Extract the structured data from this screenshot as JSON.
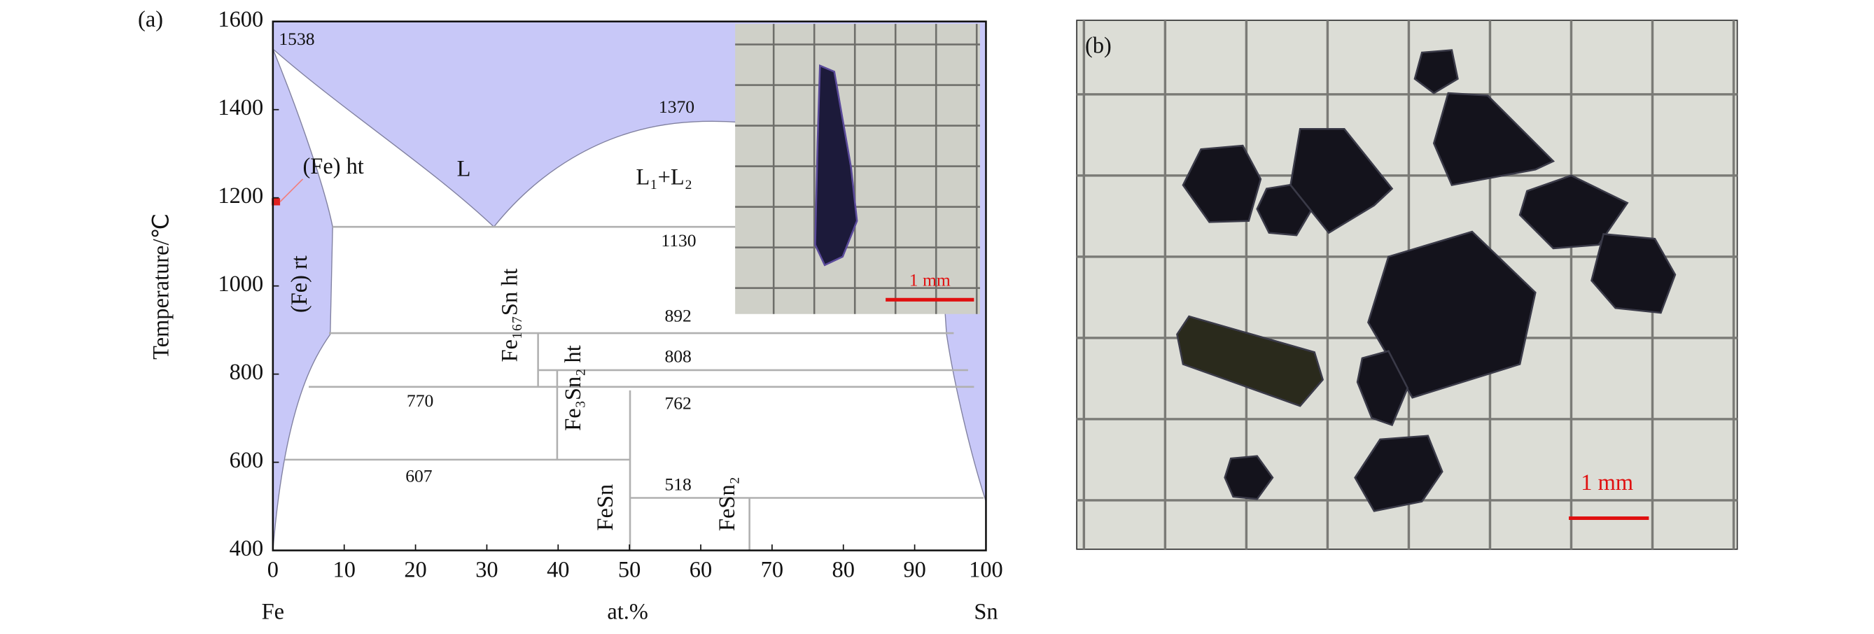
{
  "panel_a": {
    "label": "(a)",
    "y_axis_title": "Temperature/℃",
    "x_axis_title": "at.%",
    "x_left": "Fe",
    "x_right": "Sn",
    "xticks": [
      0,
      10,
      20,
      30,
      40,
      50,
      60,
      70,
      80,
      90,
      100
    ],
    "yticks": [
      400,
      600,
      800,
      1000,
      1200,
      1400,
      1600
    ],
    "temperatures": [
      1538,
      1370,
      1130,
      892,
      808,
      770,
      762,
      607,
      518
    ],
    "phases": [
      "(Fe) ht",
      "L",
      "L₁+L₂",
      "(Fe) rt",
      "Fe₁₆₇Sn ht",
      "Fe₃Sn₂ ht",
      "FeSn",
      "FeSn₂"
    ],
    "inset_scale": "1 mm"
  },
  "panel_b": {
    "label": "(b)",
    "scale": "1 mm"
  }
}
